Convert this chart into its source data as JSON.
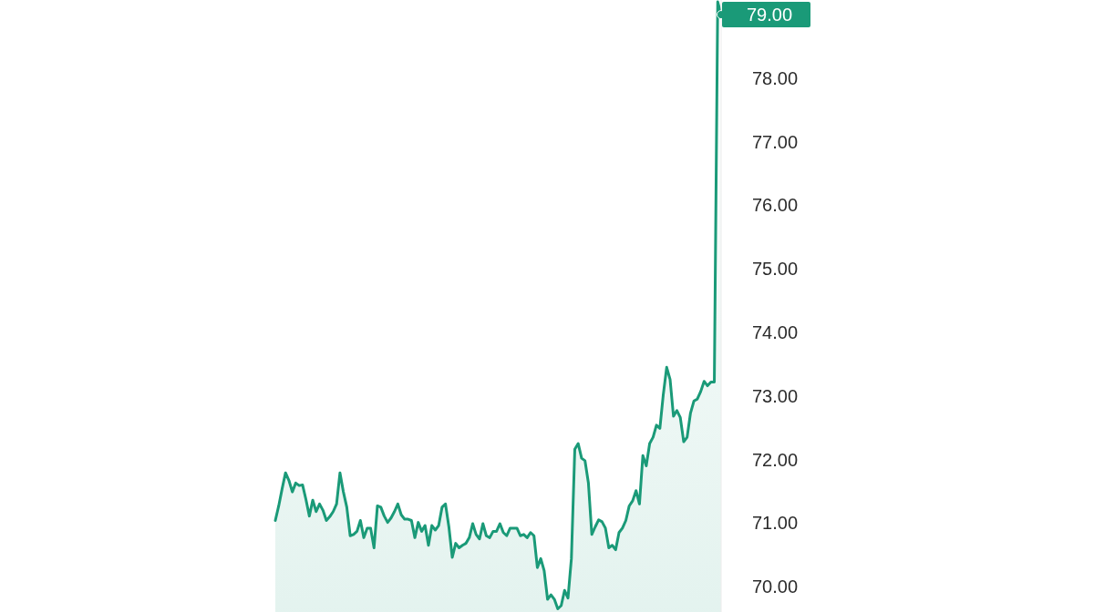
{
  "chart_data": {
    "type": "area",
    "color": "#1a9a78",
    "categories": [
      null,
      null,
      null,
      null,
      null,
      null,
      null,
      null,
      null,
      null,
      null,
      null,
      null,
      null,
      null,
      null,
      null,
      null,
      null,
      null,
      null,
      null,
      null,
      null,
      null,
      null,
      null,
      null,
      null,
      null,
      null,
      null,
      null,
      null,
      null,
      null,
      null,
      null,
      null,
      null,
      null,
      null,
      null,
      null,
      null,
      null,
      null,
      null,
      null,
      null,
      null,
      null,
      null,
      null,
      null,
      null,
      null,
      null,
      null,
      null,
      null,
      null,
      null,
      null,
      null,
      null,
      null,
      null,
      null,
      null,
      null,
      null,
      null,
      null,
      null,
      null,
      null,
      null,
      null,
      null,
      null,
      null,
      null,
      null,
      null,
      null,
      null,
      null,
      null,
      null,
      null,
      null,
      null,
      null,
      null,
      null,
      null,
      null,
      null,
      null,
      null,
      null,
      null,
      null,
      null,
      null,
      null,
      null,
      null,
      null,
      null,
      null,
      null,
      null,
      null,
      null,
      null,
      null,
      null,
      null,
      null,
      null,
      null,
      null,
      null,
      null,
      null,
      null,
      null,
      null,
      null,
      null
    ],
    "values": [
      71.04,
      71.27,
      71.54,
      71.79,
      71.67,
      71.49,
      71.63,
      71.59,
      71.6,
      71.37,
      71.11,
      71.36,
      71.18,
      71.3,
      71.2,
      71.04,
      71.1,
      71.18,
      71.3,
      71.79,
      71.49,
      71.25,
      70.8,
      70.82,
      70.87,
      71.04,
      70.77,
      70.92,
      70.92,
      70.61,
      71.27,
      71.25,
      71.11,
      71.01,
      71.08,
      71.18,
      71.3,
      71.13,
      71.06,
      71.06,
      71.04,
      70.77,
      71.01,
      70.87,
      70.96,
      70.65,
      70.96,
      70.89,
      70.96,
      71.25,
      71.3,
      70.94,
      70.46,
      70.68,
      70.61,
      70.65,
      70.68,
      70.77,
      70.99,
      70.82,
      70.75,
      70.99,
      70.8,
      70.77,
      70.87,
      70.87,
      70.99,
      70.85,
      70.8,
      70.92,
      70.92,
      70.92,
      70.8,
      70.82,
      70.77,
      70.85,
      70.8,
      70.3,
      70.44,
      70.25,
      69.8,
      69.87,
      69.8,
      69.65,
      69.7,
      69.94,
      69.82,
      70.44,
      72.16,
      72.25,
      72.02,
      71.98,
      71.63,
      70.82,
      70.94,
      71.05,
      71.02,
      70.92,
      70.61,
      70.65,
      70.58,
      70.85,
      70.92,
      71.04,
      71.27,
      71.35,
      71.51,
      71.3,
      72.06,
      71.9,
      72.25,
      72.35,
      72.54,
      72.49,
      73.02,
      73.45,
      73.26,
      72.68,
      72.77,
      72.66,
      72.28,
      72.35,
      72.73,
      72.92,
      72.95,
      73.07,
      73.23,
      73.16,
      73.22,
      73.22,
      79.2,
      79.0
    ],
    "value_labels": [
      null,
      null,
      null,
      null,
      null,
      null,
      null,
      null,
      null,
      null,
      null,
      null,
      null,
      null,
      null,
      null,
      null,
      null,
      null,
      null,
      null,
      null,
      null,
      null,
      null,
      null,
      null,
      null,
      null,
      null,
      null,
      null,
      null,
      null,
      null,
      null,
      null,
      null,
      null,
      null,
      null,
      null,
      null,
      null,
      null,
      null,
      null,
      null,
      null,
      null,
      null,
      null,
      null,
      null,
      null,
      null,
      null,
      null,
      null,
      null,
      null,
      null,
      null,
      null,
      null,
      null,
      null,
      null,
      null,
      null,
      null,
      null,
      null,
      null,
      null,
      null,
      null,
      null,
      null,
      null,
      null,
      null,
      null,
      null,
      null,
      null,
      null,
      null,
      null,
      null,
      null,
      null,
      null,
      null,
      null,
      null,
      null,
      null,
      null,
      null,
      null,
      null,
      null,
      null,
      null,
      null,
      null,
      null,
      null,
      null,
      null,
      null,
      null,
      null,
      null,
      null,
      null,
      null,
      null,
      null,
      null,
      null,
      null,
      null,
      null,
      null,
      null,
      null,
      null,
      null,
      null,
      "79.00"
    ],
    "ylim": [
      69.6,
      79.23
    ],
    "yticks": [
      {
        "value": 70,
        "label": "70.00"
      },
      {
        "value": 71,
        "label": "71.00"
      },
      {
        "value": 72,
        "label": "72.00"
      },
      {
        "value": 73,
        "label": "73.00"
      },
      {
        "value": 74,
        "label": "74.00"
      },
      {
        "value": 75,
        "label": "75.00"
      },
      {
        "value": 76,
        "label": "76.00"
      },
      {
        "value": 77,
        "label": "77.00"
      },
      {
        "value": 78,
        "label": "78.00"
      }
    ],
    "tick_labels": "y"
  }
}
